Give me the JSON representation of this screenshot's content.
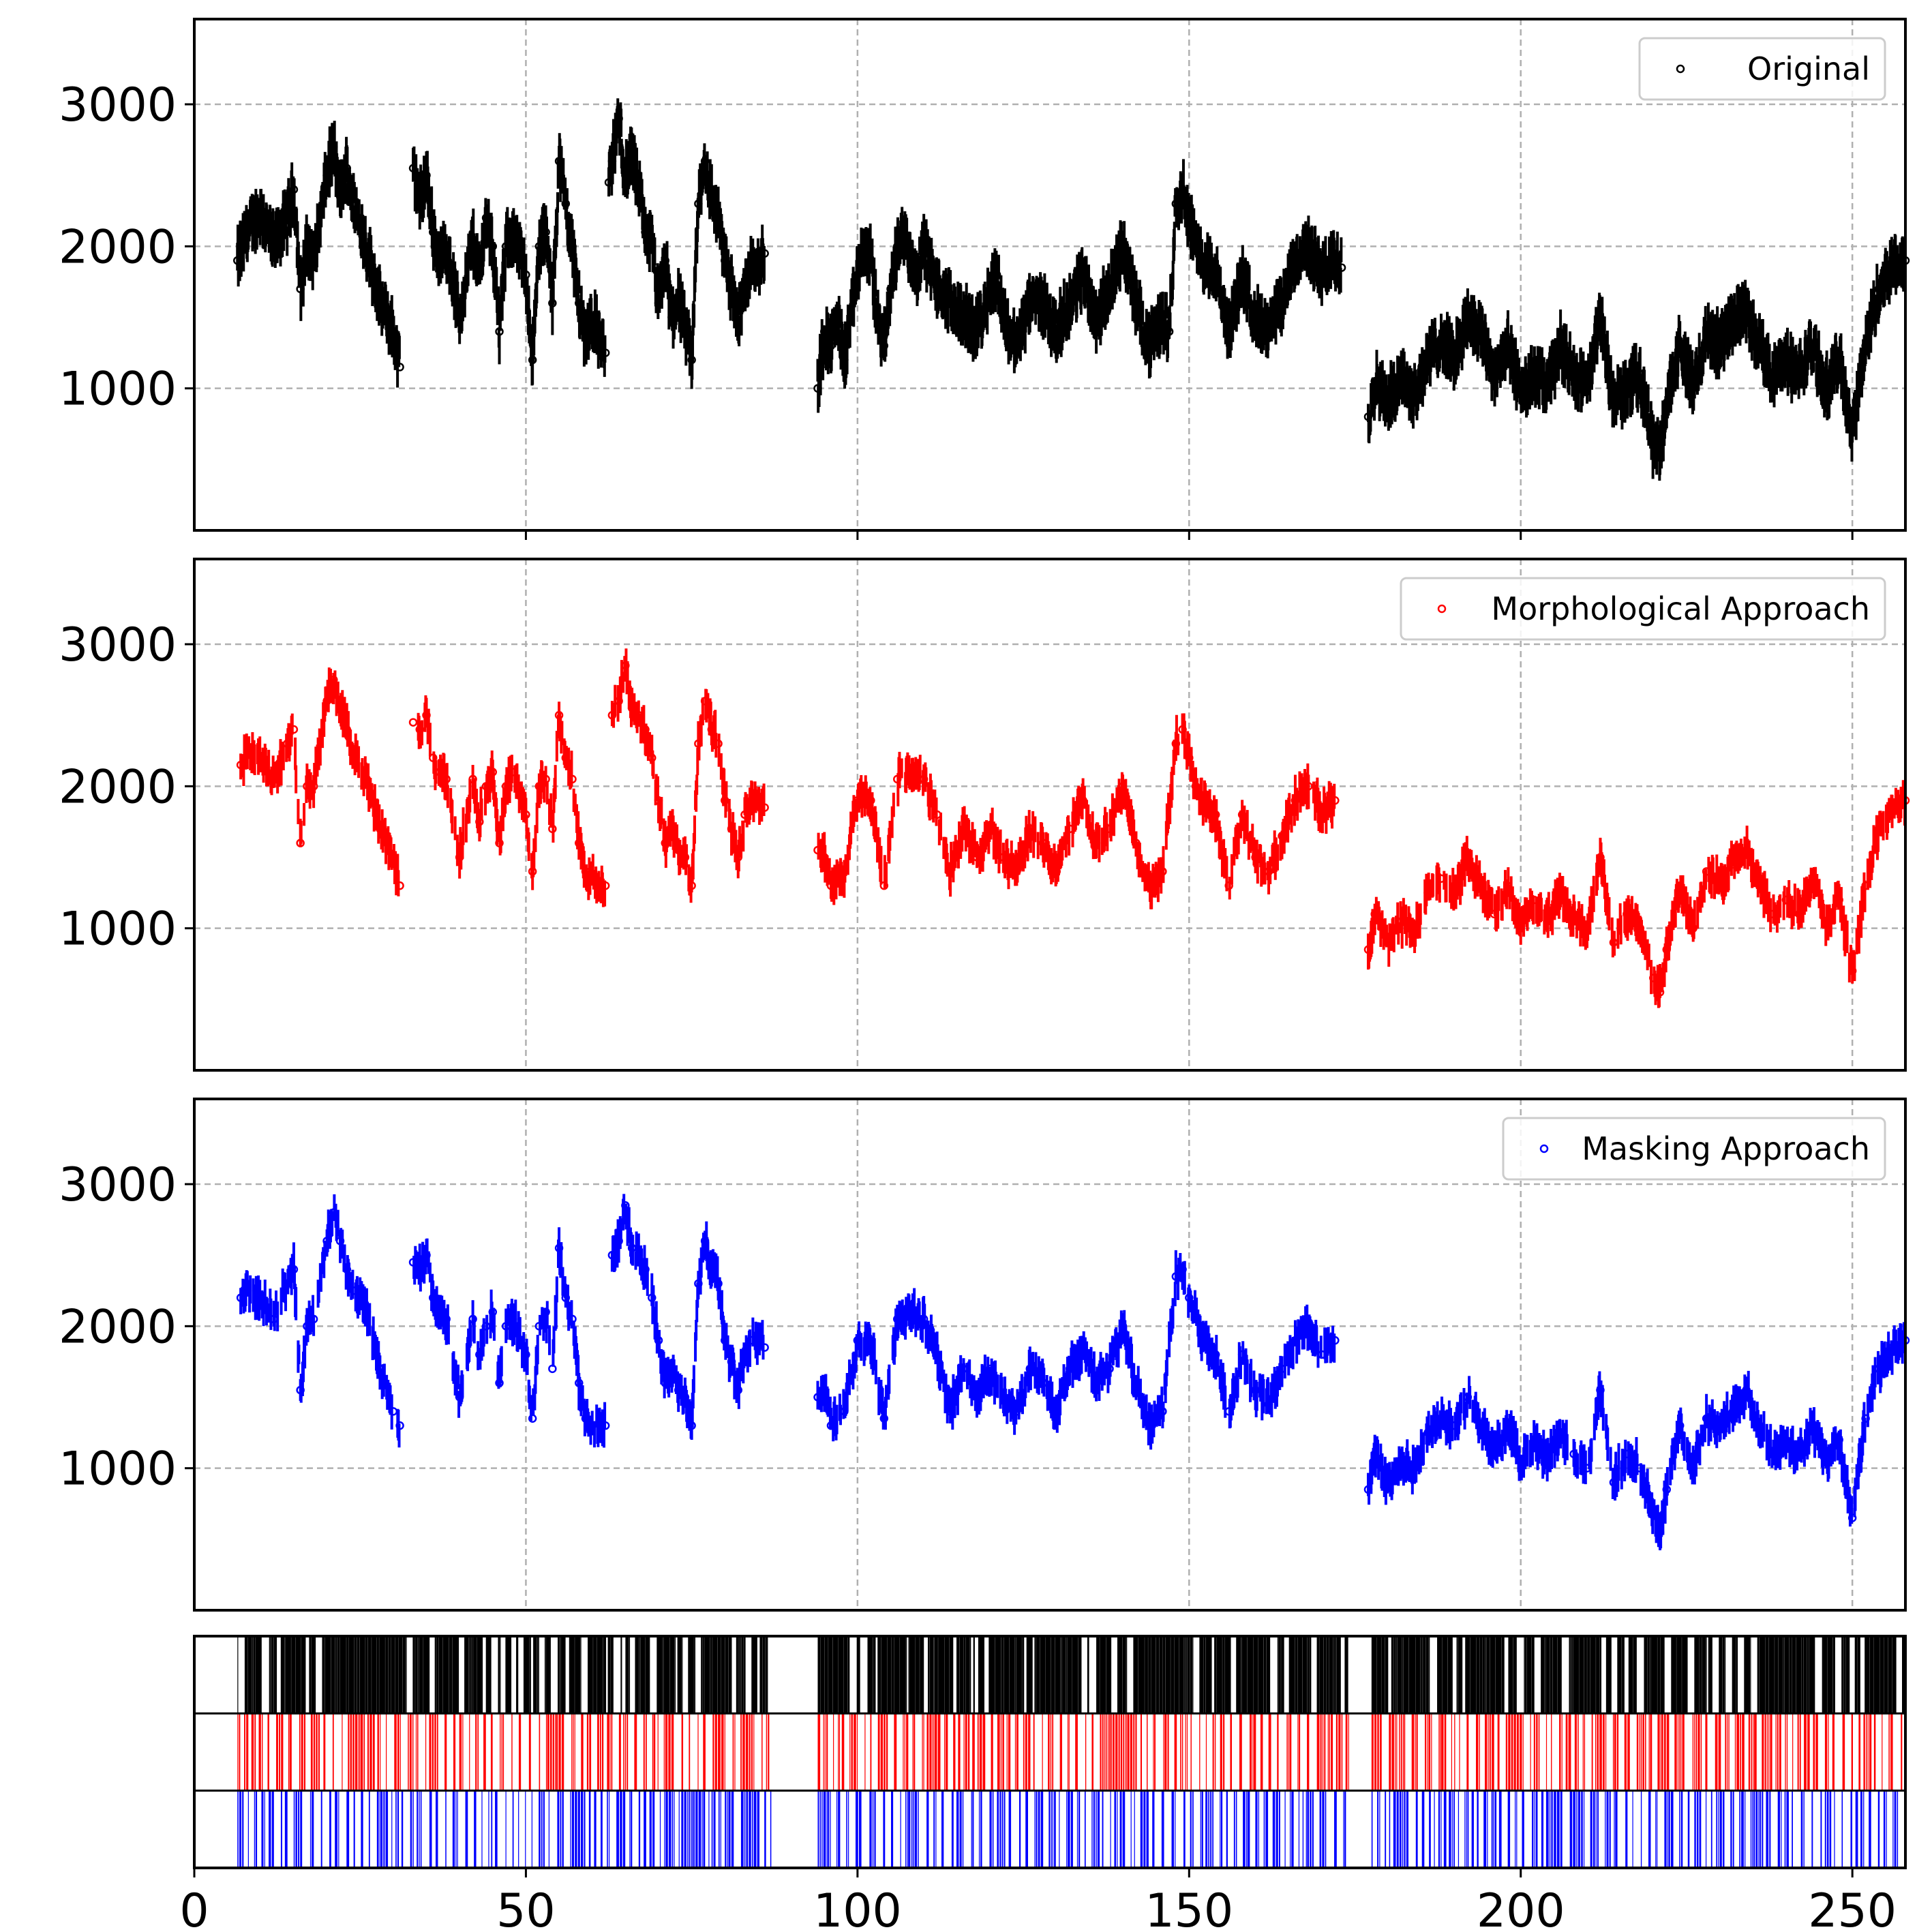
{
  "chart_data": [
    {
      "type": "scatter",
      "panel": "original",
      "legend": "Original",
      "legend_position": "top-right",
      "color": "#000000",
      "xlim": [
        0,
        258
      ],
      "ylim": [
        0,
        3600
      ],
      "yticks": [
        1000,
        2000,
        3000
      ],
      "xticks": [
        50,
        100,
        150,
        200,
        250
      ],
      "grid": true,
      "segments": [
        {
          "x": [
            6.5,
            8,
            10,
            12,
            14,
            15,
            16,
            17,
            18,
            20,
            21,
            22,
            23,
            24,
            26,
            28,
            30,
            31
          ],
          "y": [
            1900,
            2100,
            2250,
            2000,
            2200,
            2400,
            1700,
            2000,
            1900,
            2500,
            2700,
            2350,
            2550,
            2300,
            2000,
            1600,
            1400,
            1150
          ]
        },
        {
          "x": [
            33,
            34,
            35,
            36,
            37,
            38,
            40,
            42,
            43,
            44,
            45,
            46,
            47,
            48,
            50,
            51,
            52,
            53,
            54,
            55,
            56,
            57,
            58,
            59,
            60,
            62
          ],
          "y": [
            2550,
            2300,
            2500,
            2100,
            1900,
            2000,
            1500,
            2050,
            1800,
            2200,
            2000,
            1400,
            2000,
            2100,
            1800,
            1200,
            2000,
            2100,
            1600,
            2600,
            2300,
            2000,
            1600,
            1350,
            1500,
            1250
          ]
        },
        {
          "x": [
            62.5,
            63,
            64,
            65,
            66,
            67,
            68,
            69,
            70,
            71,
            72,
            73,
            74,
            75,
            76,
            77,
            78,
            79,
            80,
            81,
            82,
            83,
            84,
            85,
            86
          ],
          "y": [
            2450,
            2600,
            2900,
            2500,
            2650,
            2400,
            2100,
            2000,
            1600,
            1900,
            1500,
            1650,
            1400,
            1200,
            2300,
            2600,
            2350,
            2200,
            1900,
            1700,
            1500,
            1700,
            1900,
            1900,
            1950
          ]
        },
        {
          "x": [
            94,
            95,
            96,
            97,
            98,
            100,
            101,
            102,
            103,
            104,
            105,
            106,
            107,
            108,
            109,
            110,
            112,
            114,
            116,
            118,
            120,
            121,
            122,
            124,
            126,
            128,
            130,
            132,
            134,
            136,
            138,
            140,
            142,
            144,
            146,
            147,
            148,
            149,
            150,
            151,
            152,
            154,
            156,
            158,
            160,
            162,
            164,
            166,
            168,
            170,
            172,
            173
          ],
          "y": [
            1000,
            1400,
            1300,
            1500,
            1200,
            1800,
            2000,
            1900,
            1500,
            1300,
            1700,
            2000,
            2100,
            1900,
            1800,
            2000,
            1700,
            1600,
            1500,
            1400,
            1700,
            1800,
            1500,
            1300,
            1600,
            1600,
            1400,
            1600,
            1800,
            1500,
            1700,
            2000,
            1600,
            1300,
            1500,
            1400,
            2300,
            2400,
            2200,
            2000,
            1900,
            1800,
            1400,
            1800,
            1500,
            1400,
            1600,
            1900,
            2000,
            1800,
            1900,
            1850
          ]
        },
        {
          "x": [
            177,
            178,
            180,
            182,
            184,
            186,
            188,
            190,
            192,
            194,
            196,
            198,
            200,
            202,
            204,
            206,
            208,
            210,
            212,
            214,
            216,
            218,
            220,
            221,
            222,
            224,
            226,
            228,
            230,
            232,
            234,
            236,
            238,
            240,
            242,
            244,
            246,
            248,
            250,
            252,
            254,
            256,
            258
          ],
          "y": [
            800,
            1050,
            900,
            1100,
            950,
            1200,
            1350,
            1200,
            1500,
            1400,
            1100,
            1300,
            1000,
            1100,
            1000,
            1300,
            1100,
            1000,
            1500,
            900,
            1000,
            1100,
            600,
            550,
            900,
            1300,
            1000,
            1400,
            1300,
            1500,
            1550,
            1300,
            1100,
            1200,
            1100,
            1300,
            1000,
            1200,
            700,
            1300,
            1700,
            1850,
            1900
          ]
        }
      ]
    },
    {
      "type": "scatter",
      "panel": "morphological",
      "legend": "Morphological Approach",
      "legend_position": "top-right",
      "color": "#ff0000",
      "xlim": [
        0,
        258
      ],
      "ylim": [
        0,
        3600
      ],
      "yticks": [
        1000,
        2000,
        3000
      ],
      "grid": true,
      "segments": [
        {
          "x": [
            7,
            8,
            10,
            12,
            14,
            15,
            16,
            17,
            18,
            20,
            21,
            22,
            23,
            24,
            26,
            28,
            30,
            31
          ],
          "y": [
            2150,
            2250,
            2200,
            2050,
            2300,
            2400,
            1600,
            2000,
            2000,
            2600,
            2750,
            2550,
            2400,
            2250,
            2050,
            1700,
            1500,
            1300
          ]
        },
        {
          "x": [
            33,
            34,
            35,
            36,
            37,
            38,
            40,
            42,
            43,
            44,
            45,
            46,
            47,
            48,
            50,
            51,
            52,
            53,
            54,
            55,
            56,
            57,
            58,
            59,
            60,
            62
          ],
          "y": [
            2450,
            2400,
            2500,
            2200,
            2100,
            2050,
            1500,
            2050,
            1750,
            2000,
            2100,
            1600,
            2000,
            2100,
            1800,
            1400,
            2000,
            2050,
            1700,
            2500,
            2200,
            2050,
            1600,
            1400,
            1350,
            1300
          ]
        },
        {
          "x": [
            63,
            64,
            65,
            66,
            67,
            68,
            69,
            70,
            71,
            72,
            73,
            74,
            75,
            76,
            77,
            78,
            79,
            80,
            81,
            82,
            83,
            84,
            85,
            86
          ],
          "y": [
            2500,
            2600,
            2850,
            2550,
            2500,
            2400,
            2200,
            1900,
            1600,
            1700,
            1550,
            1500,
            1300,
            2300,
            2600,
            2400,
            2300,
            1900,
            1700,
            1500,
            1800,
            1900,
            1900,
            1850
          ]
        },
        {
          "x": [
            94,
            95,
            96,
            98,
            100,
            102,
            104,
            106,
            108,
            110,
            112,
            114,
            116,
            118,
            120,
            122,
            124,
            126,
            128,
            130,
            132,
            134,
            136,
            138,
            140,
            142,
            144,
            146,
            148,
            149,
            150,
            151,
            152,
            154,
            156,
            158,
            160,
            162,
            164,
            166,
            168,
            170,
            172
          ],
          "y": [
            1550,
            1500,
            1300,
            1400,
            1900,
            1900,
            1300,
            2050,
            2100,
            2050,
            1800,
            1400,
            1700,
            1500,
            1700,
            1500,
            1400,
            1700,
            1600,
            1400,
            1700,
            1900,
            1600,
            1700,
            2000,
            1600,
            1300,
            1400,
            2300,
            2400,
            2200,
            2000,
            1900,
            1800,
            1300,
            1800,
            1500,
            1400,
            1650,
            1900,
            2000,
            1800,
            1900
          ]
        },
        {
          "x": [
            177,
            178,
            180,
            182,
            184,
            186,
            188,
            190,
            192,
            194,
            196,
            198,
            200,
            202,
            204,
            206,
            208,
            210,
            212,
            214,
            216,
            218,
            220,
            221,
            222,
            224,
            226,
            228,
            230,
            232,
            234,
            236,
            238,
            240,
            242,
            244,
            246,
            248,
            250,
            252,
            254,
            256,
            258
          ],
          "y": [
            850,
            1100,
            900,
            1050,
            1000,
            1250,
            1350,
            1250,
            1500,
            1300,
            1100,
            1300,
            1000,
            1200,
            1050,
            1250,
            1100,
            1000,
            1500,
            900,
            1100,
            1000,
            650,
            550,
            850,
            1300,
            1000,
            1400,
            1300,
            1450,
            1550,
            1300,
            1100,
            1200,
            1100,
            1350,
            1050,
            1200,
            700,
            1300,
            1700,
            1850,
            1900
          ]
        }
      ]
    },
    {
      "type": "scatter",
      "panel": "masking",
      "legend": "Masking Approach",
      "legend_position": "top-right",
      "color": "#0000ff",
      "xlim": [
        0,
        258
      ],
      "ylim": [
        0,
        3600
      ],
      "yticks": [
        1000,
        2000,
        3000
      ],
      "grid": true,
      "segments": [
        {
          "x": [
            7,
            8,
            10,
            12,
            14,
            15,
            16,
            17,
            18,
            20,
            21,
            22,
            23,
            24,
            26,
            28,
            30,
            31
          ],
          "y": [
            2200,
            2250,
            2200,
            2050,
            2300,
            2400,
            1550,
            2000,
            2050,
            2600,
            2800,
            2600,
            2400,
            2250,
            2100,
            1700,
            1400,
            1300
          ]
        },
        {
          "x": [
            33,
            34,
            35,
            36,
            37,
            38,
            40,
            42,
            43,
            44,
            45,
            46,
            47,
            48,
            50,
            51,
            52,
            53,
            54,
            55,
            56,
            57,
            58,
            59,
            60,
            62
          ],
          "y": [
            2450,
            2400,
            2500,
            2200,
            2100,
            2050,
            1500,
            2050,
            1800,
            2000,
            2100,
            1600,
            2000,
            2050,
            1800,
            1350,
            2000,
            2100,
            1700,
            2550,
            2200,
            2050,
            1600,
            1350,
            1300,
            1300
          ]
        },
        {
          "x": [
            63,
            64,
            65,
            66,
            67,
            68,
            69,
            70,
            71,
            72,
            73,
            74,
            75,
            76,
            77,
            78,
            79,
            80,
            81,
            82,
            83,
            84,
            85,
            86
          ],
          "y": [
            2500,
            2600,
            2850,
            2550,
            2500,
            2400,
            2200,
            1900,
            1600,
            1700,
            1550,
            1500,
            1300,
            2300,
            2600,
            2400,
            2300,
            1900,
            1750,
            1550,
            1800,
            1900,
            1900,
            1850
          ]
        },
        {
          "x": [
            94,
            95,
            96,
            98,
            100,
            102,
            104,
            106,
            108,
            110,
            112,
            114,
            116,
            118,
            120,
            122,
            124,
            126,
            128,
            130,
            132,
            134,
            136,
            138,
            140,
            142,
            144,
            146,
            148,
            149,
            150,
            151,
            152,
            154,
            156,
            158,
            160,
            162,
            164,
            166,
            168,
            170,
            172
          ],
          "y": [
            1500,
            1550,
            1300,
            1400,
            1900,
            1900,
            1350,
            2050,
            2100,
            2050,
            1800,
            1400,
            1700,
            1500,
            1700,
            1500,
            1400,
            1700,
            1600,
            1400,
            1700,
            1850,
            1600,
            1700,
            2000,
            1600,
            1300,
            1400,
            2350,
            2400,
            2200,
            2050,
            1900,
            1800,
            1400,
            1800,
            1550,
            1450,
            1700,
            1900,
            2000,
            1800,
            1900
          ]
        },
        {
          "x": [
            177,
            178,
            180,
            182,
            184,
            186,
            188,
            190,
            192,
            194,
            196,
            198,
            200,
            202,
            204,
            206,
            208,
            210,
            212,
            214,
            216,
            218,
            220,
            221,
            222,
            224,
            226,
            228,
            230,
            232,
            234,
            236,
            238,
            240,
            242,
            244,
            246,
            248,
            250,
            252,
            254,
            256,
            258
          ],
          "y": [
            850,
            1100,
            900,
            1050,
            1000,
            1250,
            1350,
            1300,
            1500,
            1300,
            1100,
            1300,
            1050,
            1200,
            1050,
            1250,
            1100,
            1000,
            1550,
            900,
            1100,
            1000,
            700,
            550,
            850,
            1300,
            1000,
            1350,
            1300,
            1400,
            1550,
            1300,
            1100,
            1200,
            1100,
            1300,
            1050,
            1200,
            650,
            1350,
            1700,
            1850,
            1900
          ]
        }
      ]
    },
    {
      "type": "bar",
      "panel": "events",
      "rows": [
        {
          "color": "#000000",
          "spans": [
            [
              6.5,
              87
            ],
            [
              94,
              174
            ],
            [
              177.5,
              258
            ]
          ]
        },
        {
          "color": "#ff0000",
          "spans": [
            [
              6.5,
              87
            ],
            [
              94,
              174
            ],
            [
              177.5,
              258
            ]
          ]
        },
        {
          "color": "#0000ff",
          "spans": [
            [
              6.5,
              87
            ],
            [
              94,
              174
            ],
            [
              177.5,
              258
            ]
          ]
        }
      ],
      "xlim": [
        0,
        258
      ],
      "xticks": [
        0,
        50,
        100,
        150,
        200,
        250
      ]
    }
  ]
}
